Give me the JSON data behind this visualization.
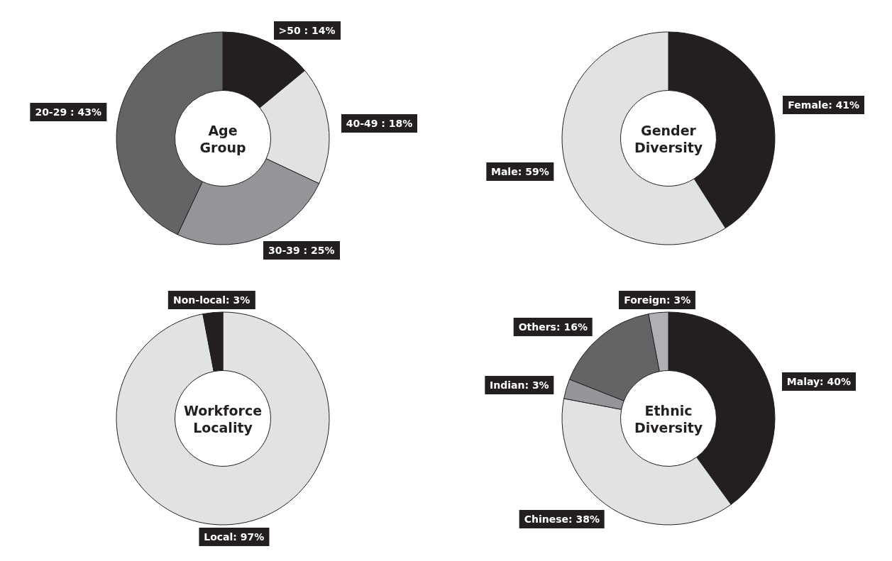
{
  "chart_data": [
    {
      "type": "donut",
      "title": "Age Group",
      "categories": [
        ">50",
        "40-49",
        "30-39",
        "20-29"
      ],
      "values": [
        14,
        18,
        25,
        43
      ],
      "colors": [
        "#231f20",
        "#e1e2e4",
        "#939598",
        "#636466"
      ],
      "value_labels": [
        " : 14%",
        " : 18%",
        " : 25%",
        " : 43%"
      ]
    },
    {
      "type": "donut",
      "title": "Gender Diversity",
      "categories": [
        "Female",
        "Male"
      ],
      "values": [
        41,
        59
      ],
      "colors": [
        "#231f20",
        "#e1e2e4"
      ],
      "value_labels": [
        ": 41%",
        ": 59%"
      ]
    },
    {
      "type": "donut",
      "title": "Workforce Locality",
      "categories": [
        "Local",
        "Non-local"
      ],
      "values": [
        97,
        3
      ],
      "colors": [
        "#e1e2e4",
        "#231f20"
      ],
      "value_labels": [
        ": 97%",
        ": 3%"
      ]
    },
    {
      "type": "donut",
      "title": "Ethnic Diversity",
      "categories": [
        "Malay",
        "Chinese",
        "Indian",
        "Others",
        "Foreign"
      ],
      "values": [
        40,
        38,
        3,
        16,
        3
      ],
      "colors": [
        "#231f20",
        "#e1e2e4",
        "#939598",
        "#636466",
        "#aeb0b3"
      ],
      "value_labels": [
        ": 40%",
        ": 38%",
        ": 3%",
        ": 16%",
        ": 3%"
      ]
    }
  ]
}
